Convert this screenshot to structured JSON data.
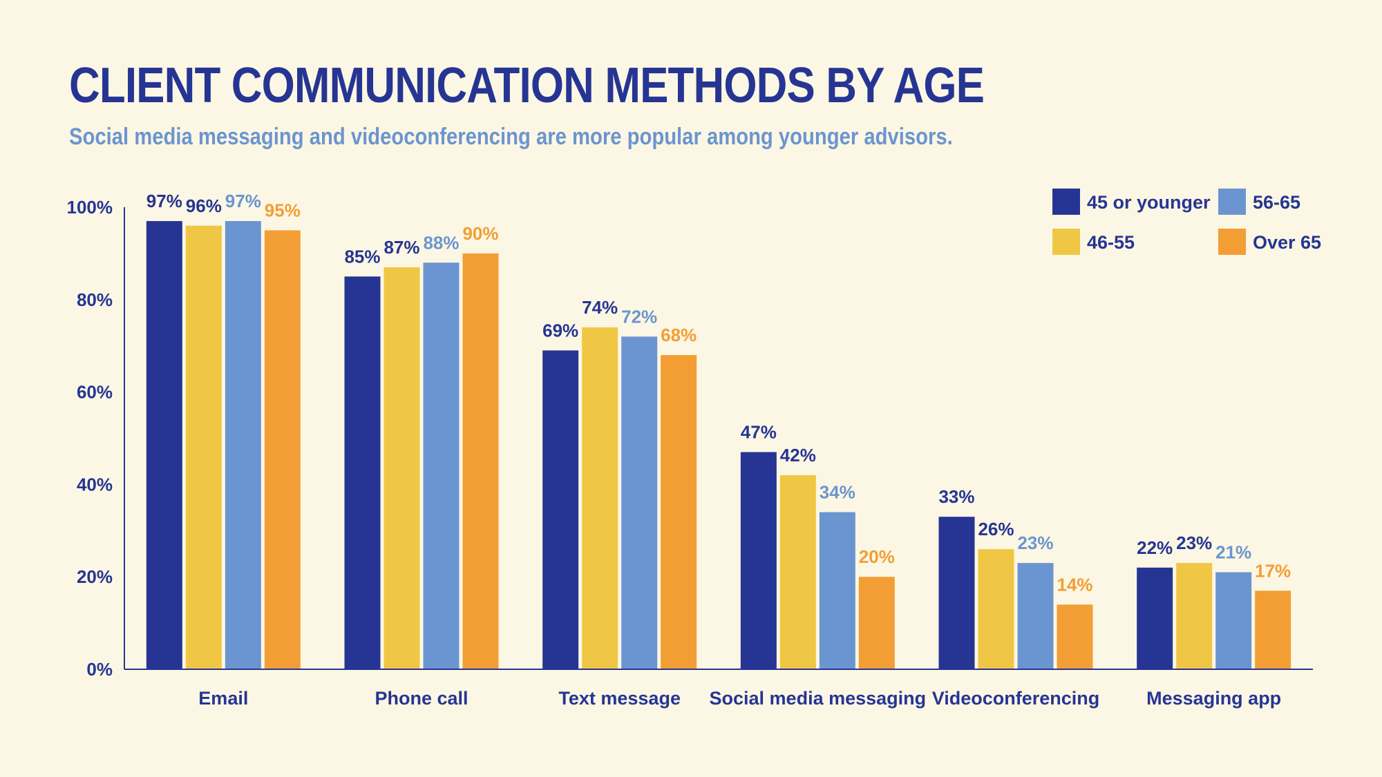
{
  "chart_data": {
    "type": "bar",
    "title": "CLIENT COMMUNICATION METHODS BY AGE",
    "subtitle": "Social media messaging and videoconferencing are more popular among younger advisors.",
    "categories": [
      "Email",
      "Phone call",
      "Text message",
      "Social media messaging",
      "Videoconferencing",
      "Messaging app"
    ],
    "series": [
      {
        "name": "45 or younger",
        "color": "#263593",
        "values": [
          97,
          85,
          69,
          47,
          33,
          22
        ],
        "labels": [
          "97%",
          "85%",
          "69%",
          "47%",
          "33%",
          "22%"
        ]
      },
      {
        "name": "46-55",
        "color": "#f0c744",
        "values": [
          96,
          87,
          74,
          42,
          26,
          23
        ],
        "labels": [
          "96%",
          "87%",
          "74%",
          "42%",
          "26%",
          "23%"
        ]
      },
      {
        "name": "56-65",
        "color": "#6b95d0",
        "values": [
          97,
          88,
          72,
          34,
          23,
          21
        ],
        "labels": [
          "97%",
          "88%",
          "72%",
          "34%",
          "23%",
          "21%"
        ]
      },
      {
        "name": "Over 65",
        "color": "#f29e35",
        "values": [
          95,
          90,
          68,
          20,
          14,
          17
        ],
        "labels": [
          "95%",
          "90%",
          "68%",
          "20%",
          "14%",
          "17%"
        ]
      }
    ],
    "label_colors": [
      "#263593",
      "#263593",
      "#6b95d0",
      "#f29e35"
    ],
    "y_ticks": [
      "0%",
      "20%",
      "40%",
      "60%",
      "80%",
      "100%"
    ],
    "y_tick_values": [
      0,
      20,
      40,
      60,
      80,
      100
    ],
    "ylim": [
      0,
      100
    ],
    "xlabel": "",
    "ylabel": "",
    "grid": false,
    "legend": "top-right",
    "colors": {
      "axis": "#263593",
      "tick_text": "#263593",
      "title": "#263593",
      "subtitle": "#6b95d0"
    }
  }
}
